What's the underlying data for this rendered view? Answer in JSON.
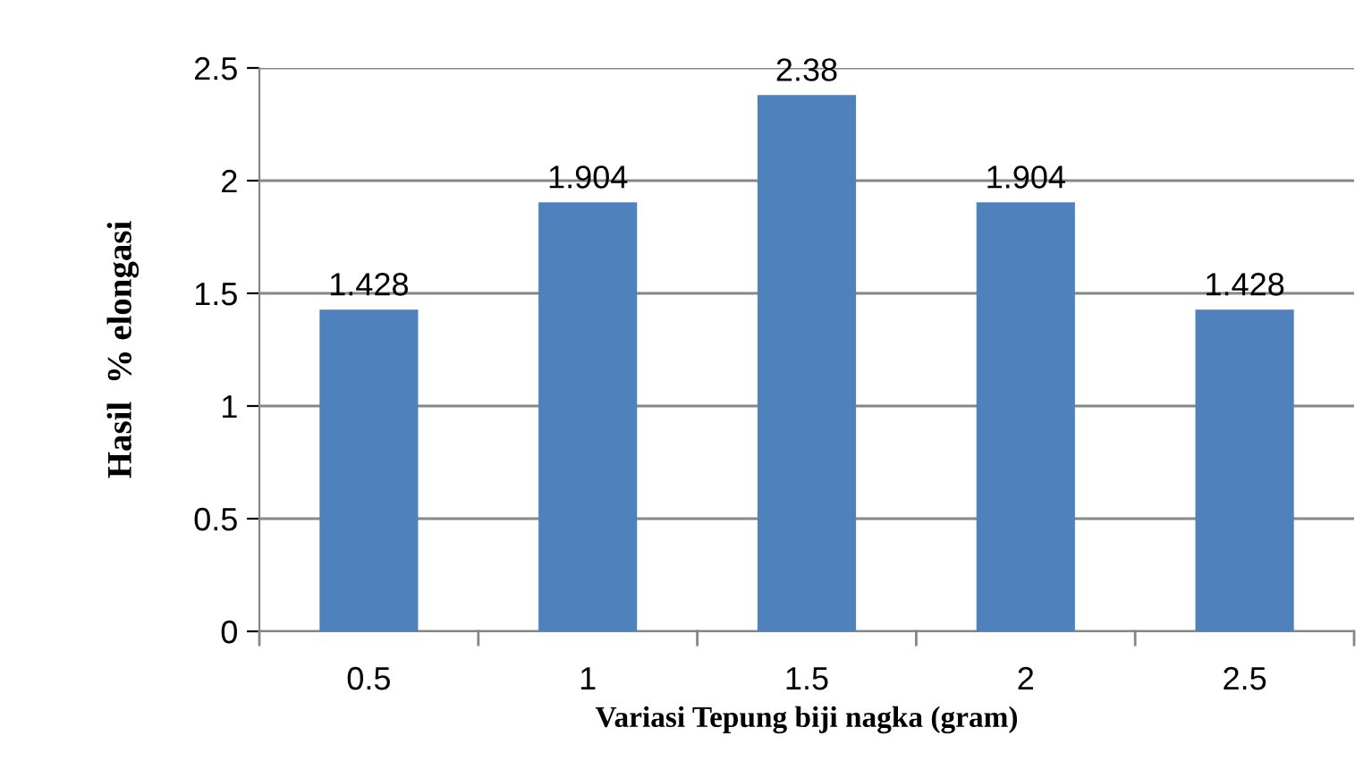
{
  "chart_data": {
    "type": "bar",
    "xlabel": "Variasi Tepung biji nagka (gram)",
    "ylabel": "Hasil  % elongasi",
    "categories": [
      "0.5",
      "1",
      "1.5",
      "2",
      "2.5"
    ],
    "values": [
      1.428,
      1.904,
      2.38,
      1.904,
      1.428
    ],
    "color": "#4f81bd",
    "ylim": [
      0,
      2.5
    ],
    "yticks": [
      0,
      0.5,
      1,
      1.5,
      2,
      2.5
    ],
    "grid": "y",
    "data_labels": true,
    "legend": false
  }
}
